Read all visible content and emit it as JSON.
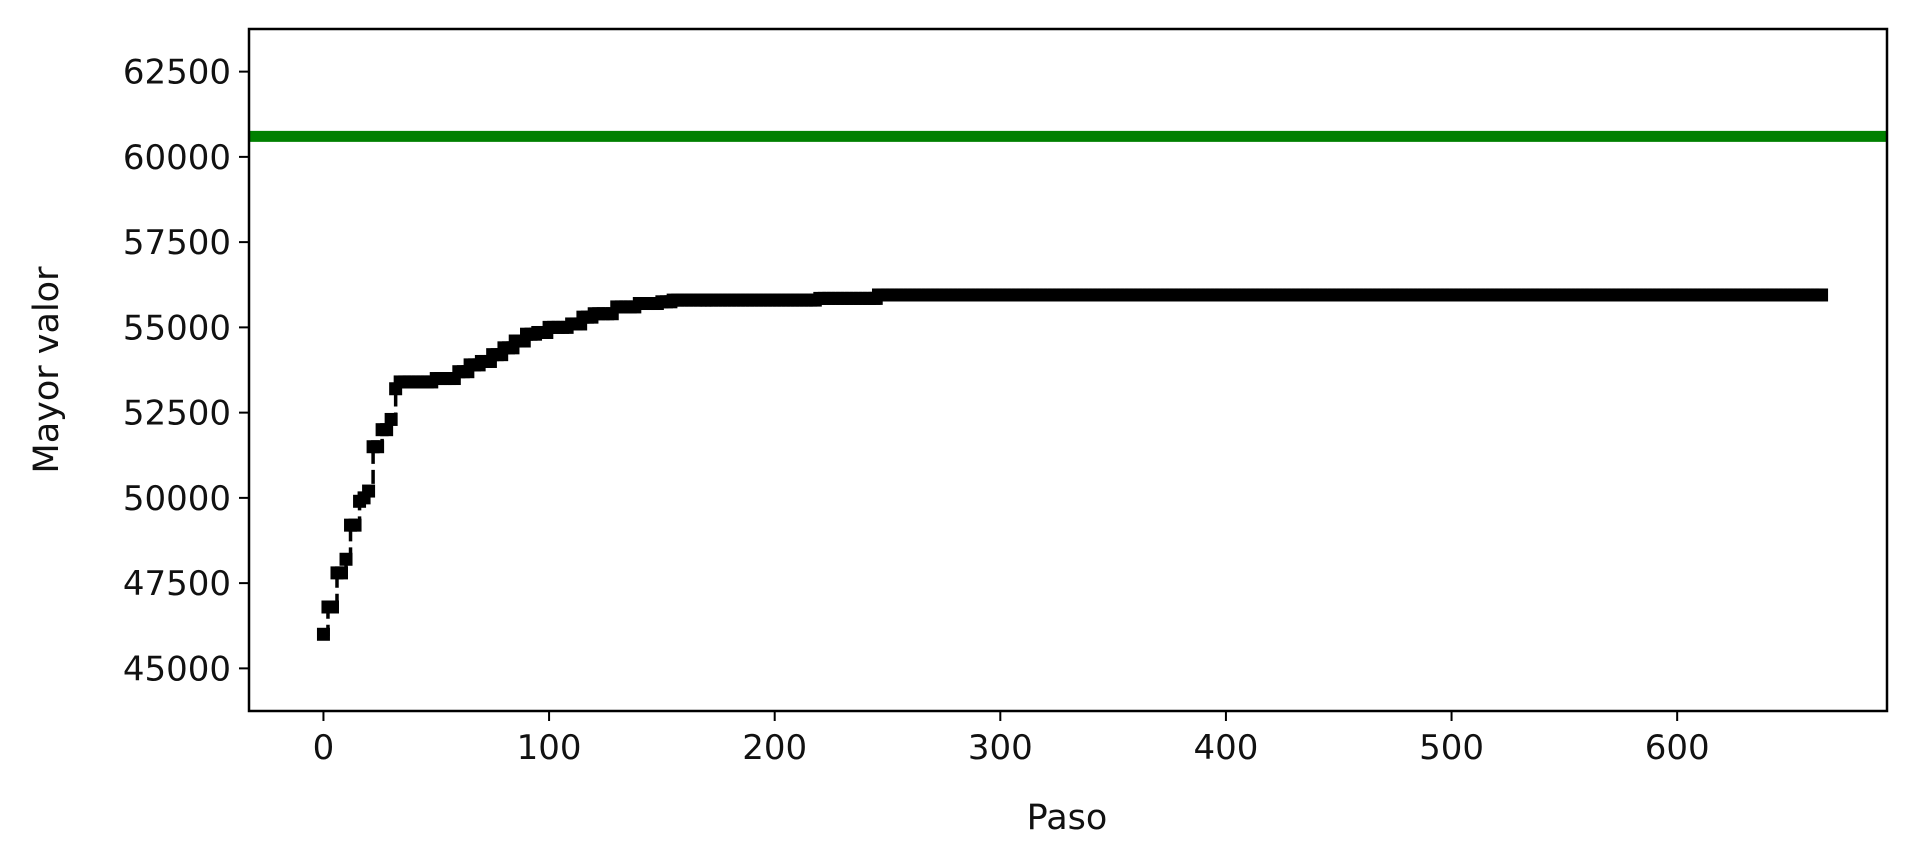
{
  "chart_data": {
    "type": "line",
    "title": "",
    "xlabel": "Paso",
    "ylabel": "Mayor valor",
    "xlim": [
      -33,
      693
    ],
    "ylim": [
      43750,
      63750
    ],
    "xticks": [
      0,
      100,
      200,
      300,
      400,
      500,
      600
    ],
    "yticks": [
      45000,
      47500,
      50000,
      52500,
      55000,
      57500,
      60000,
      62500
    ],
    "xtick_labels": [
      "0",
      "100",
      "200",
      "300",
      "400",
      "500",
      "600"
    ],
    "ytick_labels": [
      "45000",
      "47500",
      "50000",
      "52500",
      "55000",
      "57500",
      "60000",
      "62500"
    ],
    "grid": false,
    "reference_line": {
      "y": 60600,
      "color": "#008000"
    },
    "series": [
      {
        "color": "#000000",
        "style": "dashed-with-square-markers",
        "x": [
          0,
          2,
          4,
          6,
          8,
          10,
          12,
          14,
          16,
          18,
          20,
          22,
          24,
          26,
          28,
          30,
          32,
          34,
          40,
          50,
          60,
          65,
          70,
          75,
          80,
          85,
          90,
          95,
          100,
          110,
          115,
          120,
          130,
          140,
          150,
          155,
          170,
          200,
          220,
          245,
          246,
          300,
          400,
          500,
          600,
          664
        ],
        "y": [
          46000,
          46800,
          46800,
          47800,
          47800,
          48200,
          49200,
          49200,
          49900,
          50000,
          50200,
          51500,
          51500,
          52000,
          52000,
          52300,
          53200,
          53400,
          53400,
          53500,
          53700,
          53900,
          54000,
          54200,
          54400,
          54600,
          54800,
          54850,
          55000,
          55100,
          55300,
          55400,
          55600,
          55700,
          55750,
          55800,
          55800,
          55800,
          55850,
          55850,
          55950,
          55950,
          55950,
          55950,
          55950,
          55950
        ]
      }
    ]
  }
}
